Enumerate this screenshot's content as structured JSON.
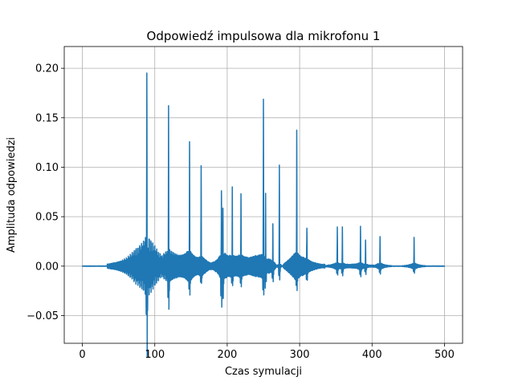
{
  "chart_data": {
    "type": "line",
    "title": "Odpowiedź impulsowa dla mikrofonu 1",
    "xlabel": "Czas symulacji",
    "ylabel": "Amplituda odpowiedzi",
    "xlim": [
      -25,
      525
    ],
    "ylim": [
      -0.078,
      0.222
    ],
    "x_ticks": [
      0,
      100,
      200,
      300,
      400,
      500
    ],
    "x_tick_labels": [
      "0",
      "100",
      "200",
      "300",
      "400",
      "500"
    ],
    "y_ticks": [
      -0.05,
      0.0,
      0.05,
      0.1,
      0.15,
      0.2
    ],
    "y_tick_labels": [
      "−0.05",
      "0.00",
      "0.05",
      "0.10",
      "0.15",
      "0.20"
    ],
    "grid": true,
    "line_color": "#1f77b4",
    "series": [
      {
        "peaks": [
          {
            "x": 89,
            "y": 0.209,
            "neg": -0.063
          },
          {
            "x": 119,
            "y": 0.159,
            "neg": -0.029
          },
          {
            "x": 148,
            "y": 0.124,
            "neg": -0.014
          },
          {
            "x": 164,
            "y": 0.106,
            "neg": -0.008
          },
          {
            "x": 192,
            "y": 0.076,
            "neg": -0.029
          },
          {
            "x": 194,
            "y": 0.062,
            "neg": -0.02
          },
          {
            "x": 207,
            "y": 0.072,
            "neg": -0.012
          },
          {
            "x": 219,
            "y": 0.073,
            "neg": -0.01
          },
          {
            "x": 250,
            "y": 0.171,
            "neg": -0.018
          },
          {
            "x": 253,
            "y": 0.068,
            "neg": -0.016
          },
          {
            "x": 263,
            "y": 0.039,
            "neg": -0.012
          },
          {
            "x": 272,
            "y": 0.102,
            "neg": -0.012
          },
          {
            "x": 296,
            "y": 0.136,
            "neg": -0.01
          },
          {
            "x": 310,
            "y": 0.045,
            "neg": -0.008
          },
          {
            "x": 352,
            "y": 0.041,
            "neg": -0.006
          },
          {
            "x": 359,
            "y": 0.038,
            "neg": -0.007
          },
          {
            "x": 384,
            "y": 0.041,
            "neg": -0.007
          },
          {
            "x": 391,
            "y": 0.025,
            "neg": -0.007
          },
          {
            "x": 411,
            "y": 0.03,
            "neg": -0.005
          },
          {
            "x": 458,
            "y": 0.029,
            "neg": -0.004
          }
        ],
        "x_range": [
          0,
          500
        ]
      }
    ]
  }
}
